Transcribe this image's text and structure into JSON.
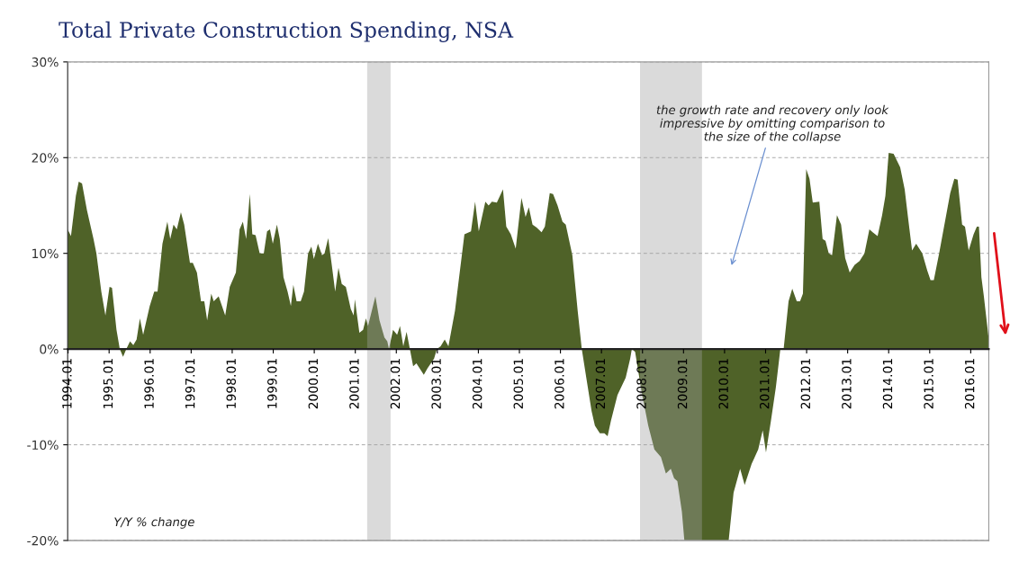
{
  "chart_data": {
    "type": "area",
    "title": "Total Private Construction Spending, NSA",
    "annotations": [
      "the growth rate and recovery only look\nimpressive by omitting comparison to\nthe size of the collapse",
      "Y/Y % change"
    ],
    "xlim": [
      1994,
      2016.45
    ],
    "ylim": [
      -20,
      30
    ],
    "xticks": [
      {
        "value": 1994.01,
        "label": "1994.01"
      },
      {
        "value": 1995.01,
        "label": "1995.01"
      },
      {
        "value": 1996.01,
        "label": "1996.01"
      },
      {
        "value": 1997.01,
        "label": "1997.01"
      },
      {
        "value": 1998.01,
        "label": "1998.01"
      },
      {
        "value": 1999.01,
        "label": "1999.01"
      },
      {
        "value": 2000.01,
        "label": "2000.01"
      },
      {
        "value": 2001.01,
        "label": "2001.01"
      },
      {
        "value": 2002.01,
        "label": "2002.01"
      },
      {
        "value": 2003.01,
        "label": "2003.01"
      },
      {
        "value": 2004.01,
        "label": "2004.01"
      },
      {
        "value": 2005.01,
        "label": "2005.01"
      },
      {
        "value": 2006.01,
        "label": "2006.01"
      },
      {
        "value": 2007.01,
        "label": "2007.01"
      },
      {
        "value": 2008.01,
        "label": "2008.01"
      },
      {
        "value": 2009.01,
        "label": "2009.01"
      },
      {
        "value": 2010.01,
        "label": "2010.01"
      },
      {
        "value": 2011.01,
        "label": "2011.01"
      },
      {
        "value": 2012.01,
        "label": "2012.01"
      },
      {
        "value": 2013.01,
        "label": "2013.01"
      },
      {
        "value": 2014.01,
        "label": "2014.01"
      },
      {
        "value": 2015.01,
        "label": "2015.01"
      },
      {
        "value": 2016.01,
        "label": "2016.01"
      }
    ],
    "yticks": [
      {
        "value": -20,
        "label": "-20%"
      },
      {
        "value": -10,
        "label": "-10%"
      },
      {
        "value": 0,
        "label": "0%"
      },
      {
        "value": 10,
        "label": "10%"
      },
      {
        "value": 20,
        "label": "20%"
      },
      {
        "value": 30,
        "label": "30%"
      }
    ],
    "grid": "y",
    "bands": [
      {
        "axis": "x",
        "from": 2001.3,
        "to": 2001.87,
        "color": "#9f9f9f"
      },
      {
        "axis": "x",
        "from": 2007.95,
        "to": 2009.46,
        "color": "#9f9f9f"
      }
    ],
    "series": [
      {
        "color": "#4f6228",
        "x": [
          1994.0,
          1994.08,
          1994.2,
          1994.27,
          1994.35,
          1994.47,
          1994.63,
          1994.7,
          1994.82,
          1994.92,
          1995.02,
          1995.08,
          1995.19,
          1995.27,
          1995.35,
          1995.43,
          1995.52,
          1995.6,
          1995.68,
          1995.76,
          1995.84,
          1996.0,
          1996.11,
          1996.19,
          1996.31,
          1996.43,
          1996.5,
          1996.58,
          1996.66,
          1996.76,
          1996.84,
          1996.98,
          1997.05,
          1997.15,
          1997.25,
          1997.33,
          1997.4,
          1997.5,
          1997.56,
          1997.68,
          1997.84,
          1997.95,
          1998.1,
          1998.19,
          1998.27,
          1998.35,
          1998.44,
          1998.5,
          1998.58,
          1998.68,
          1998.78,
          1998.86,
          1998.93,
          1999.0,
          1999.1,
          1999.17,
          1999.26,
          1999.36,
          1999.44,
          1999.5,
          1999.58,
          1999.68,
          1999.76,
          1999.86,
          1999.94,
          2000.0,
          2000.1,
          2000.2,
          2000.26,
          2000.35,
          2000.43,
          2000.52,
          2000.6,
          2000.68,
          2000.78,
          2000.9,
          2000.97,
          2001.0,
          2001.11,
          2001.2,
          2001.27,
          2001.32,
          2001.5,
          2001.6,
          2001.72,
          2001.79,
          2001.83,
          2001.93,
          2002.03,
          2002.1,
          2002.18,
          2002.26,
          2002.34,
          2002.42,
          2002.5,
          2002.68,
          2002.77,
          2002.93,
          2003.0,
          2003.09,
          2003.19,
          2003.28,
          2003.44,
          2003.67,
          2003.83,
          2003.93,
          2004.02,
          2004.18,
          2004.26,
          2004.34,
          2004.46,
          2004.61,
          2004.69,
          2004.8,
          2004.92,
          2005.06,
          2005.16,
          2005.24,
          2005.33,
          2005.43,
          2005.55,
          2005.63,
          2005.75,
          2005.83,
          2005.94,
          2006.06,
          2006.14,
          2006.3,
          2006.43,
          2006.53,
          2006.64,
          2006.77,
          2006.85,
          2006.97,
          2007.08,
          2007.16,
          2007.24,
          2007.4,
          2007.6,
          2007.71,
          2007.75,
          2007.83,
          2007.99,
          2008.15,
          2008.3,
          2008.46,
          2008.58,
          2008.7,
          2008.78,
          2008.86,
          2008.97,
          2009.03,
          2010.11,
          2010.23,
          2010.39,
          2010.5,
          2010.67,
          2010.83,
          2010.94,
          2011.02,
          2011.14,
          2011.26,
          2011.37,
          2011.45,
          2011.57,
          2011.66,
          2011.77,
          2011.85,
          2011.92,
          2012.0,
          2012.08,
          2012.16,
          2012.32,
          2012.4,
          2012.47,
          2012.55,
          2012.63,
          2012.75,
          2012.85,
          2012.95,
          2013.06,
          2013.18,
          2013.3,
          2013.42,
          2013.54,
          2013.62,
          2013.74,
          2013.85,
          2013.93,
          2014.01,
          2014.13,
          2014.29,
          2014.4,
          2014.48,
          2014.58,
          2014.68,
          2014.83,
          2014.95,
          2015.03,
          2015.11,
          2015.24,
          2015.39,
          2015.51,
          2015.61,
          2015.69,
          2015.8,
          2015.87,
          2015.96,
          2016.08,
          2016.16,
          2016.21,
          2016.27,
          2016.33,
          2016.41,
          2016.45
        ],
        "values": [
          12.5,
          11.8,
          16,
          17.5,
          17.3,
          14.5,
          11.5,
          10,
          6,
          3.5,
          6.5,
          6.4,
          2,
          0,
          -0.8,
          0,
          0.8,
          0.4,
          1,
          3.2,
          1.5,
          4.5,
          6,
          6,
          11,
          13.3,
          11.5,
          13,
          12.5,
          14.3,
          13,
          9,
          9,
          8,
          5,
          5,
          3,
          5.8,
          5,
          5.5,
          3.5,
          6.5,
          8,
          12.5,
          13.3,
          11.5,
          16.2,
          12,
          11.9,
          10,
          10,
          12.3,
          12.5,
          11,
          13,
          11.5,
          7.5,
          6,
          4.5,
          6.7,
          5,
          5,
          6,
          10,
          10.7,
          9.4,
          11,
          9.8,
          10,
          11.6,
          9,
          6,
          8.5,
          6.8,
          6.5,
          4.2,
          3.5,
          5.2,
          1.7,
          2,
          3.2,
          2.4,
          5.5,
          3,
          1.2,
          0.8,
          0,
          2,
          1.5,
          2.4,
          0.3,
          1.8,
          0,
          -1.8,
          -1.5,
          -2.7,
          -2,
          -1,
          0,
          0.3,
          1,
          0.3,
          4,
          12,
          12.3,
          15.4,
          12.3,
          15.4,
          15,
          15.4,
          15.3,
          16.7,
          12.8,
          12,
          10.5,
          15.8,
          13.8,
          14.8,
          13,
          12.7,
          12.2,
          12.8,
          16.3,
          16.2,
          15,
          13.3,
          13,
          9.8,
          4,
          0,
          -3,
          -6.5,
          -8,
          -8.8,
          -8.8,
          -9.1,
          -7.5,
          -4.8,
          -3,
          -1,
          0,
          -0.3,
          -4.5,
          -8,
          -10.5,
          -11.3,
          -13,
          -12.5,
          -13.5,
          -13.8,
          -17,
          -20,
          -20,
          -15,
          -12.5,
          -14.2,
          -12,
          -10.5,
          -8.5,
          -10.8,
          -7.5,
          -4,
          0,
          0,
          5,
          6.3,
          5,
          5,
          5.8,
          18.8,
          17.8,
          15.3,
          15.4,
          11.5,
          11.3,
          10,
          9.8,
          14,
          13,
          9.5,
          8,
          8.8,
          9.2,
          10,
          12.5,
          12.2,
          11.8,
          14,
          16,
          20.5,
          20.4,
          19,
          16.7,
          13.8,
          10.3,
          11,
          10,
          8.2,
          7.2,
          7.2,
          10,
          13.5,
          16.3,
          17.8,
          17.7,
          13,
          12.8,
          10.3,
          12,
          12.8,
          12.8,
          7.5,
          5.5,
          2.5,
          1
        ]
      }
    ]
  }
}
